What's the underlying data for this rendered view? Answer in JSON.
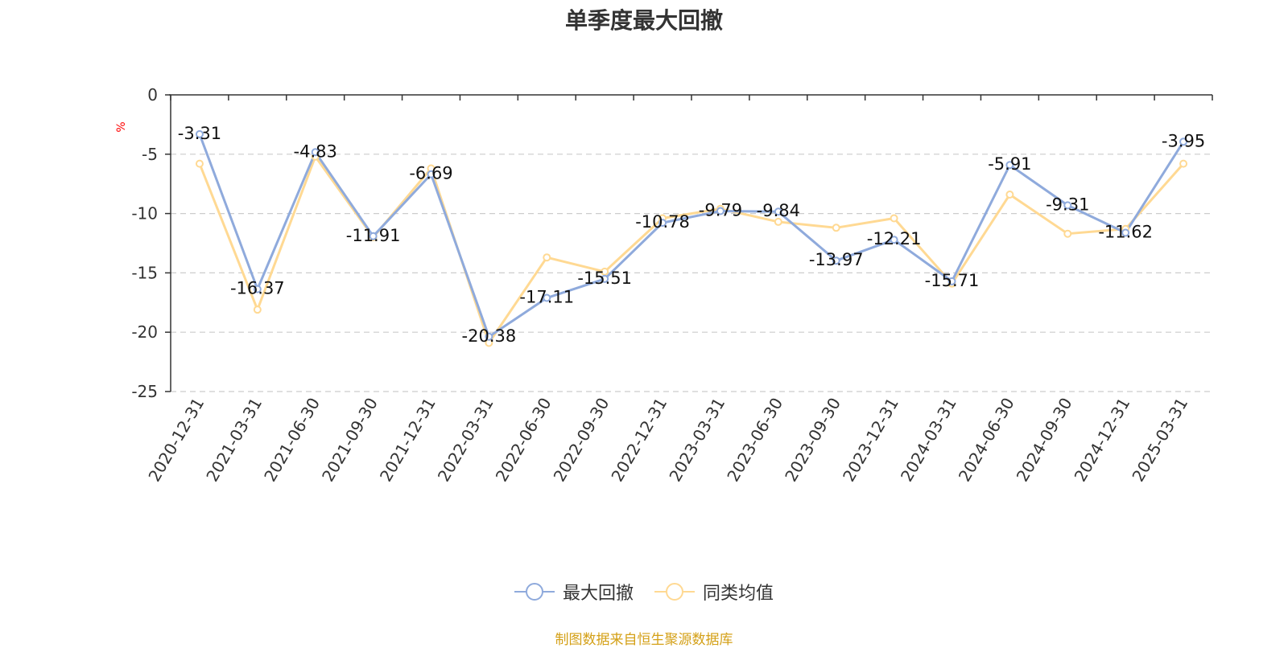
{
  "chart_data": {
    "type": "line",
    "title": "单季度最大回撤",
    "ylabel": "%",
    "xlabel": "",
    "ylim": [
      -25,
      0
    ],
    "yticks": [
      0,
      -5,
      -10,
      -15,
      -20,
      -25
    ],
    "grid": true,
    "legend_position": "bottom",
    "categories": [
      "2020-12-31",
      "2021-03-31",
      "2021-06-30",
      "2021-09-30",
      "2021-12-31",
      "2022-03-31",
      "2022-06-30",
      "2022-09-30",
      "2022-12-31",
      "2023-03-31",
      "2023-06-30",
      "2023-09-30",
      "2023-12-31",
      "2024-03-31",
      "2024-06-30",
      "2024-09-30",
      "2024-12-31",
      "2025-03-31"
    ],
    "series": [
      {
        "name": "最大回撤",
        "color": "#8faadc",
        "show_labels": true,
        "values": [
          -3.31,
          -16.37,
          -4.83,
          -11.91,
          -6.69,
          -20.38,
          -17.11,
          -15.51,
          -10.78,
          -9.79,
          -9.84,
          -13.97,
          -12.21,
          -15.71,
          -5.91,
          -9.31,
          -11.62,
          -3.95
        ]
      },
      {
        "name": "同类均值",
        "color": "#ffd993",
        "show_labels": false,
        "values": [
          -5.8,
          -18.1,
          -5.2,
          -12.0,
          -6.2,
          -20.9,
          -13.7,
          -14.9,
          -10.4,
          -9.6,
          -10.7,
          -11.2,
          -10.4,
          -15.9,
          -8.4,
          -11.7,
          -11.3,
          -5.8
        ]
      }
    ]
  },
  "source_text": "制图数据来自恒生聚源数据库"
}
